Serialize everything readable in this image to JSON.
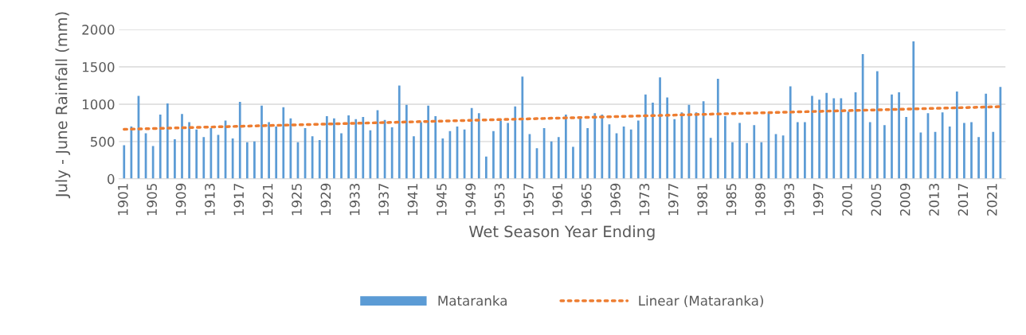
{
  "chart_data": {
    "type": "bar",
    "xlabel": "Wet Season Year Ending",
    "ylabel": "July - June Rainfall (mm)",
    "categories": [
      "1901",
      null,
      null,
      null,
      "1905",
      null,
      null,
      null,
      "1909",
      null,
      null,
      null,
      "1913",
      null,
      null,
      null,
      "1917",
      null,
      null,
      null,
      "1921",
      null,
      null,
      null,
      "1925",
      null,
      null,
      null,
      "1929",
      null,
      null,
      null,
      "1933",
      null,
      null,
      null,
      "1937",
      null,
      null,
      null,
      "1941",
      null,
      null,
      null,
      "1945",
      null,
      null,
      null,
      "1949",
      null,
      null,
      null,
      "1953",
      null,
      null,
      null,
      "1957",
      null,
      null,
      null,
      "1961",
      null,
      null,
      null,
      "1965",
      null,
      null,
      null,
      "1969",
      null,
      null,
      null,
      "1973",
      null,
      null,
      null,
      "1977",
      null,
      null,
      null,
      "1981",
      null,
      null,
      null,
      "1985",
      null,
      null,
      null,
      "1989",
      null,
      null,
      null,
      "1993",
      null,
      null,
      null,
      "1997",
      null,
      null,
      null,
      "2001",
      null,
      null,
      null,
      "2005",
      null,
      null,
      null,
      "2009",
      null,
      null,
      null,
      "2013",
      null,
      null,
      null,
      "2017",
      null,
      null,
      null,
      "2021",
      null
    ],
    "series": [
      {
        "name": "Mataranka",
        "color": "#5b9bd5",
        "values": [
          450,
          700,
          1110,
          610,
          440,
          860,
          1010,
          530,
          870,
          760,
          660,
          560,
          680,
          590,
          780,
          540,
          1030,
          490,
          500,
          980,
          760,
          700,
          960,
          810,
          490,
          680,
          570,
          520,
          840,
          810,
          610,
          850,
          800,
          830,
          650,
          920,
          790,
          690,
          1250,
          990,
          570,
          760,
          980,
          840,
          540,
          640,
          700,
          660,
          950,
          880,
          300,
          640,
          780,
          750,
          970,
          1370,
          600,
          410,
          680,
          500,
          560,
          860,
          430,
          830,
          680,
          880,
          860,
          730,
          610,
          700,
          660,
          780,
          1130,
          1020,
          1360,
          1090,
          800,
          890,
          990,
          890,
          1040,
          550,
          1340,
          840,
          490,
          750,
          480,
          720,
          490,
          880,
          600,
          580,
          1240,
          760,
          760,
          1110,
          1060,
          1150,
          1080,
          1080,
          900,
          1160,
          1670,
          760,
          1440,
          720,
          1130,
          1160,
          830,
          1840,
          620,
          880,
          630,
          890,
          700,
          1170,
          750,
          760,
          560,
          1140,
          630,
          1230
        ]
      },
      {
        "name": "Linear (Mataranka)",
        "type": "line",
        "color": "#ed7d31",
        "line_style": "dotted",
        "marker": "none",
        "values": [
          664,
          667,
          669,
          672,
          674,
          677,
          679,
          682,
          684,
          687,
          689,
          692,
          694,
          697,
          699,
          702,
          704,
          707,
          709,
          712,
          714,
          717,
          719,
          722,
          724,
          727,
          729,
          732,
          734,
          737,
          739,
          742,
          744,
          747,
          749,
          752,
          754,
          757,
          759,
          762,
          764,
          767,
          769,
          772,
          774,
          777,
          779,
          782,
          784,
          787,
          789,
          792,
          794,
          797,
          799,
          802,
          804,
          807,
          809,
          812,
          814,
          817,
          819,
          822,
          824,
          827,
          829,
          832,
          834,
          837,
          839,
          842,
          844,
          847,
          849,
          852,
          854,
          857,
          859,
          862,
          864,
          867,
          869,
          872,
          874,
          877,
          879,
          882,
          884,
          887,
          889,
          892,
          894,
          897,
          899,
          902,
          904,
          907,
          909,
          912,
          914,
          917,
          919,
          922,
          924,
          927,
          929,
          932,
          934,
          937,
          939,
          942,
          944,
          947,
          949,
          952,
          954,
          957,
          959,
          962,
          964,
          967
        ]
      }
    ],
    "ylim": [
      0,
      2000
    ],
    "yticks": [
      0,
      500,
      1000,
      1500,
      2000
    ],
    "grid": "y",
    "legend": "bottom"
  }
}
